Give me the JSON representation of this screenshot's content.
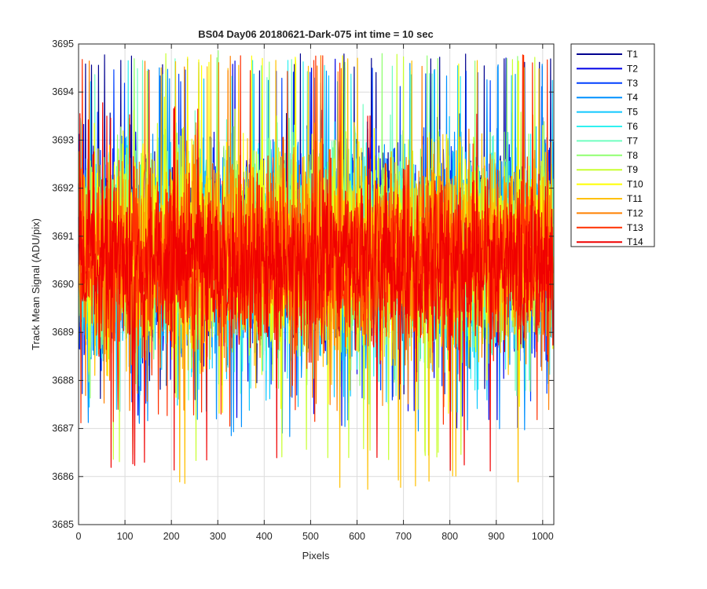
{
  "chart_data": {
    "type": "line",
    "title": "BS04 Day06 20180621-Dark-075 int time = 10 sec",
    "xlabel": "Pixels",
    "ylabel": "Track Mean Signal (ADU/pix)",
    "xlim": [
      0,
      1024
    ],
    "ylim": [
      3685,
      3695
    ],
    "xticks": [
      0,
      100,
      200,
      300,
      400,
      500,
      600,
      700,
      800,
      900,
      1000
    ],
    "yticks": [
      3685,
      3686,
      3687,
      3688,
      3689,
      3690,
      3691,
      3692,
      3693,
      3694,
      3695
    ],
    "grid": true,
    "legend_position": "outside-top-right",
    "num_points": 1024,
    "series": [
      {
        "name": "T1",
        "color": "#00008f",
        "mean": 3690.8,
        "spread": 1.25,
        "min": 3687.6,
        "max": 3694.8
      },
      {
        "name": "T2",
        "color": "#0000e6",
        "mean": 3690.8,
        "spread": 1.25,
        "min": 3687.0,
        "max": 3694.8
      },
      {
        "name": "T3",
        "color": "#0040ff",
        "mean": 3690.7,
        "spread": 1.2,
        "min": 3687.5,
        "max": 3694.5
      },
      {
        "name": "T4",
        "color": "#0090ff",
        "mean": 3690.7,
        "spread": 1.2,
        "min": 3686.8,
        "max": 3694.6
      },
      {
        "name": "T5",
        "color": "#10c8ff",
        "mean": 3690.7,
        "spread": 1.2,
        "min": 3687.3,
        "max": 3694.6
      },
      {
        "name": "T6",
        "color": "#30f0f0",
        "mean": 3690.7,
        "spread": 1.2,
        "min": 3687.8,
        "max": 3694.7
      },
      {
        "name": "T7",
        "color": "#70ffc0",
        "mean": 3690.7,
        "spread": 1.2,
        "min": 3687.5,
        "max": 3694.7
      },
      {
        "name": "T8",
        "color": "#90ff70",
        "mean": 3690.8,
        "spread": 1.2,
        "min": 3687.6,
        "max": 3695.0
      },
      {
        "name": "T9",
        "color": "#c8ff30",
        "mean": 3690.8,
        "spread": 1.2,
        "min": 3686.3,
        "max": 3695.0
      },
      {
        "name": "T10",
        "color": "#ffff00",
        "mean": 3690.7,
        "spread": 1.2,
        "min": 3687.3,
        "max": 3694.8
      },
      {
        "name": "T11",
        "color": "#ffc000",
        "mean": 3690.6,
        "spread": 1.15,
        "min": 3685.7,
        "max": 3694.8
      },
      {
        "name": "T12",
        "color": "#ff8000",
        "mean": 3690.6,
        "spread": 1.15,
        "min": 3687.3,
        "max": 3694.8
      },
      {
        "name": "T13",
        "color": "#ff3000",
        "mean": 3690.5,
        "spread": 1.05,
        "min": 3687.0,
        "max": 3694.8
      },
      {
        "name": "T14",
        "color": "#f00000",
        "mean": 3690.4,
        "spread": 0.95,
        "min": 3686.1,
        "max": 3693.8
      }
    ]
  }
}
